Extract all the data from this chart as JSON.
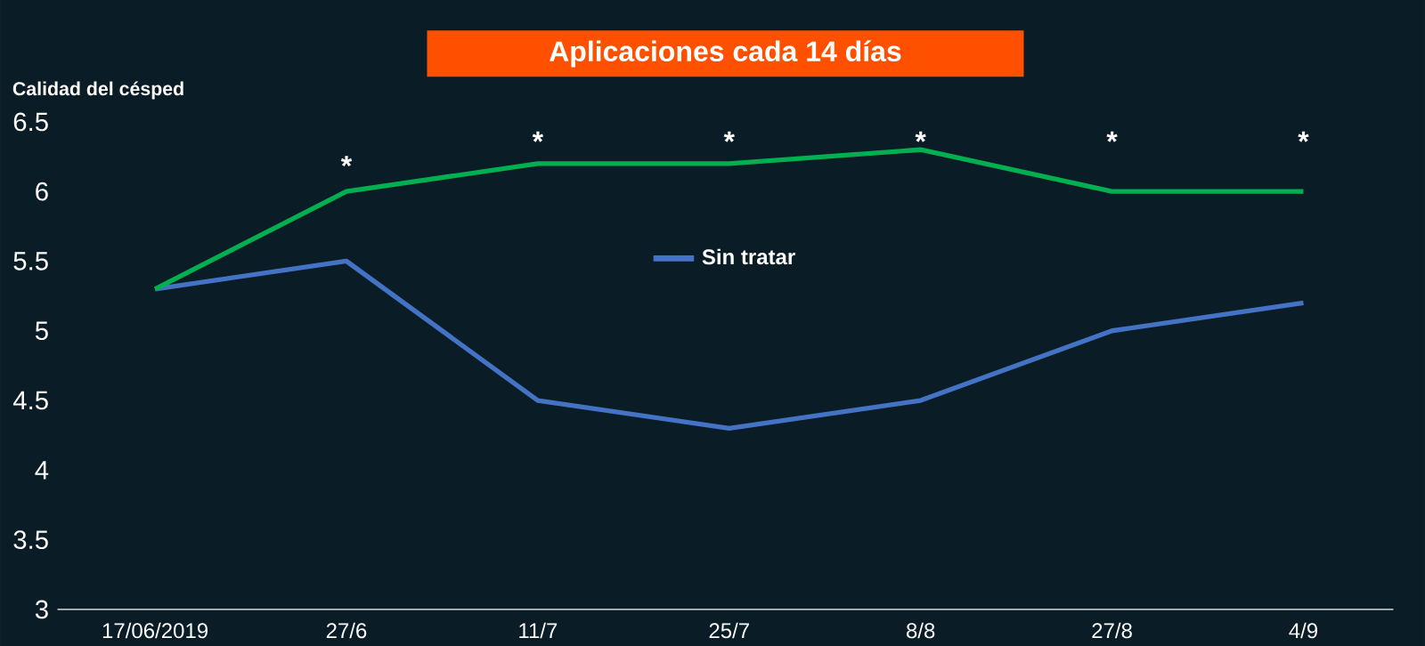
{
  "chart_data": {
    "type": "line",
    "title": "Aplicaciones cada 14 días",
    "ylabel": "Calidad del césped",
    "categories": [
      "17/06/2019",
      "27/6",
      "11/7",
      "25/7",
      "8/8",
      "27/8",
      "4/9"
    ],
    "series": [
      {
        "name": "Sin tratar",
        "color": "#4472c4",
        "values": [
          5.3,
          5.5,
          4.5,
          4.3,
          4.5,
          5.0,
          5.2
        ]
      },
      {
        "color": "#00b050",
        "values": [
          5.3,
          6.0,
          6.2,
          6.2,
          6.3,
          6.0,
          6.0
        ]
      }
    ],
    "ylim": [
      3,
      6.5
    ],
    "yticks": [
      3,
      3.5,
      4,
      4.5,
      5,
      5.5,
      6,
      6.5
    ],
    "grid": false,
    "legend": "top",
    "marker": "none",
    "line_style": "solid",
    "annotations": [
      "*",
      "*",
      "*",
      "*",
      "*",
      "*"
    ]
  }
}
